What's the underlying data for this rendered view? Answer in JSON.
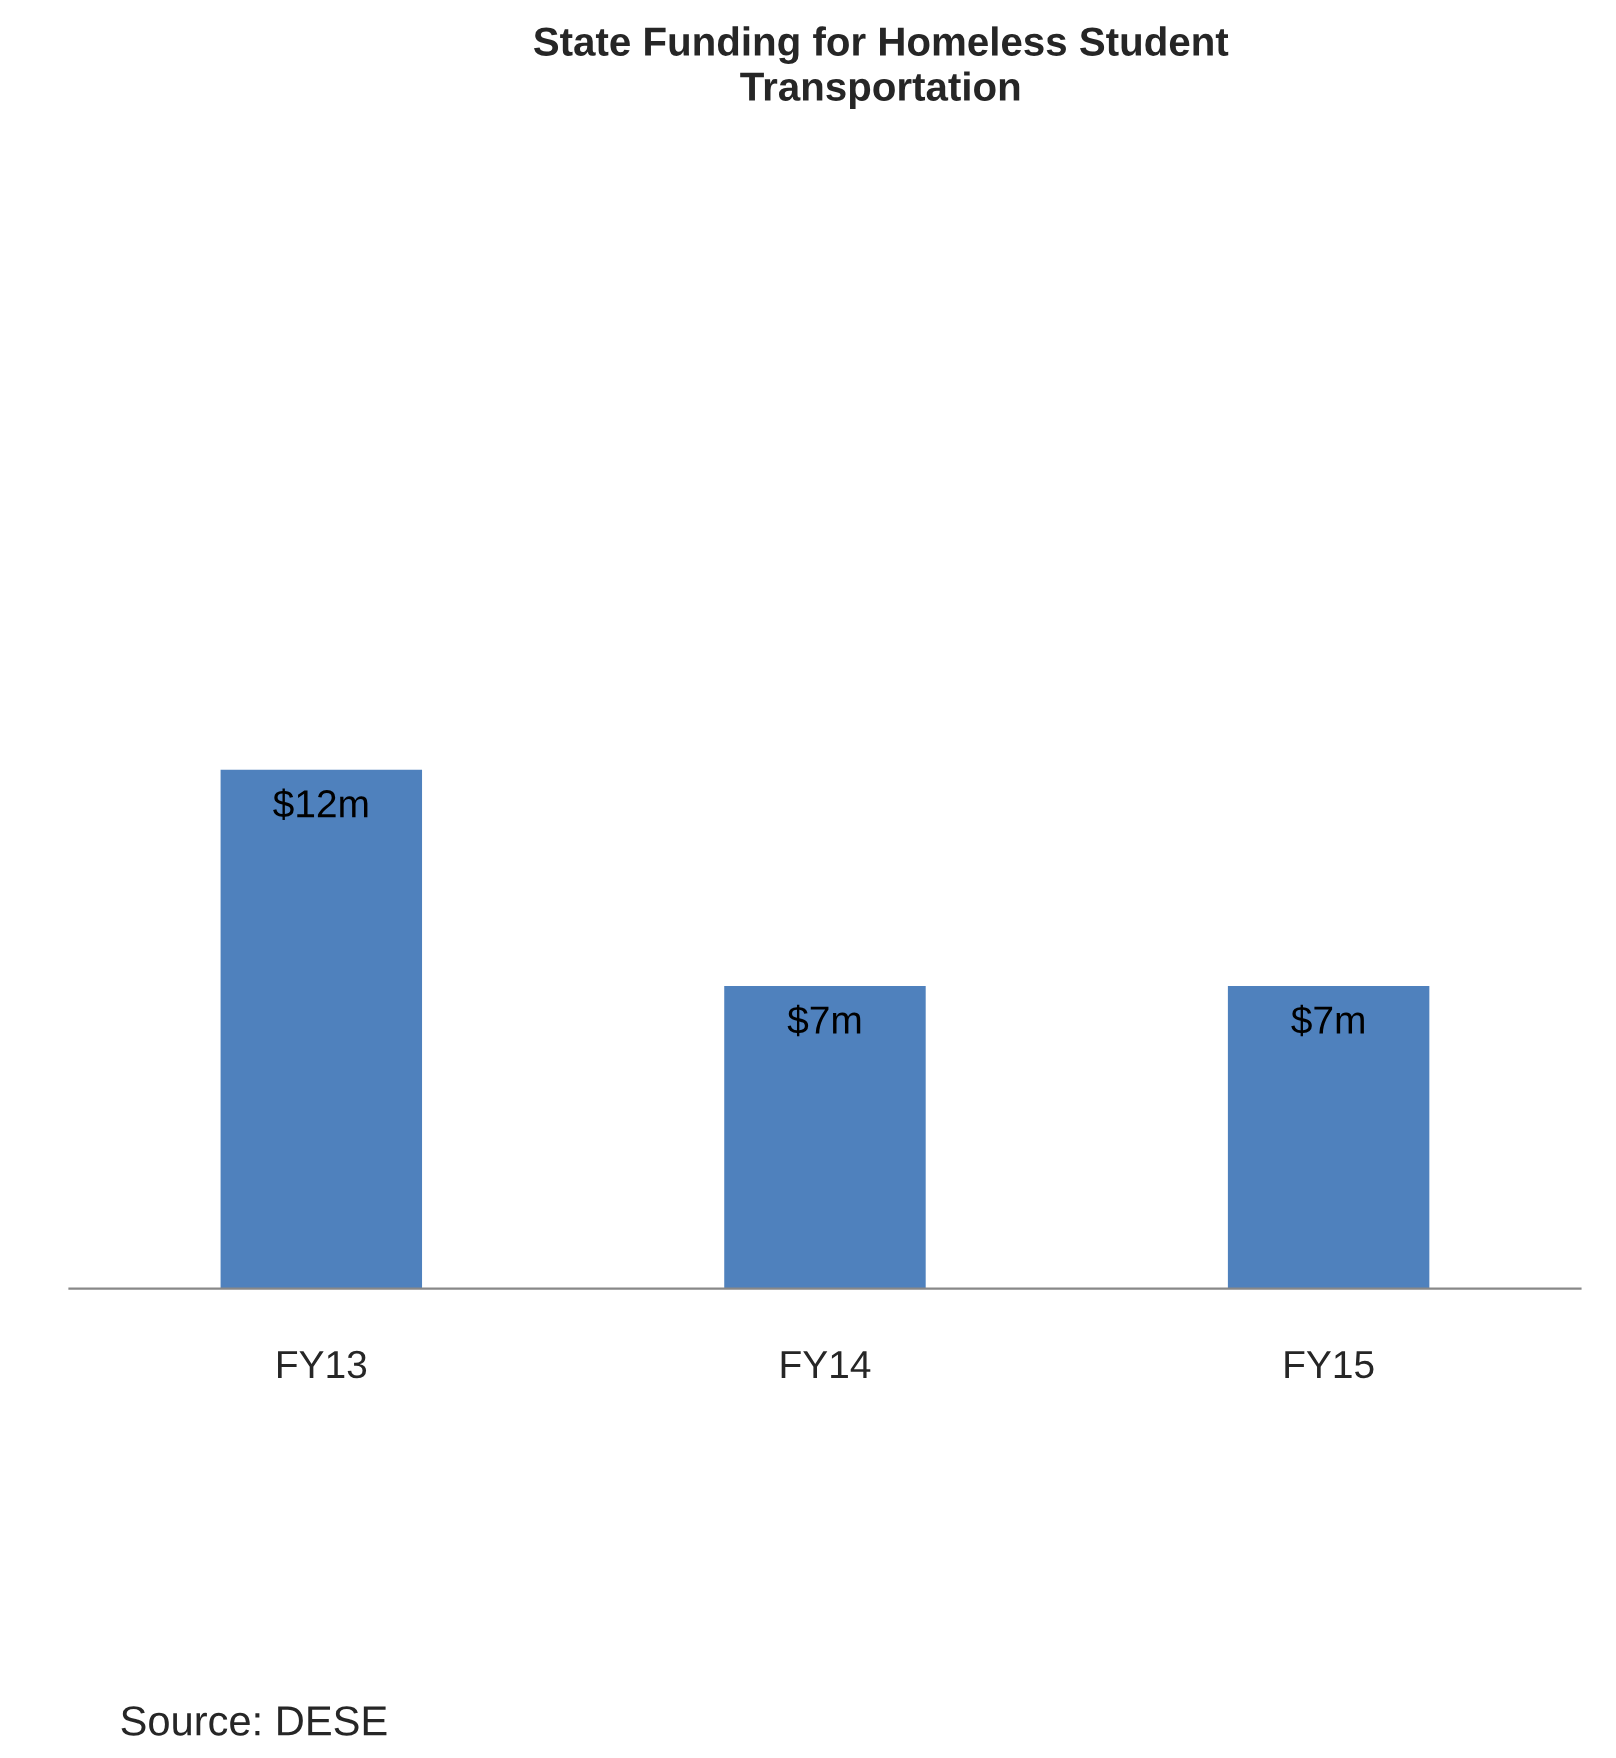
{
  "chart_data": {
    "type": "bar",
    "title": "State Funding for Homeless Student\nTransportation",
    "categories": [
      "FY13",
      "FY14",
      "FY15"
    ],
    "values": [
      12,
      7,
      7
    ],
    "value_labels": [
      "$12m",
      "$7m",
      "$7m"
    ],
    "color": "#4f81bd",
    "tick_labels": "x",
    "grid": false,
    "legend": false,
    "annotations": [
      "Source: DESE"
    ]
  }
}
